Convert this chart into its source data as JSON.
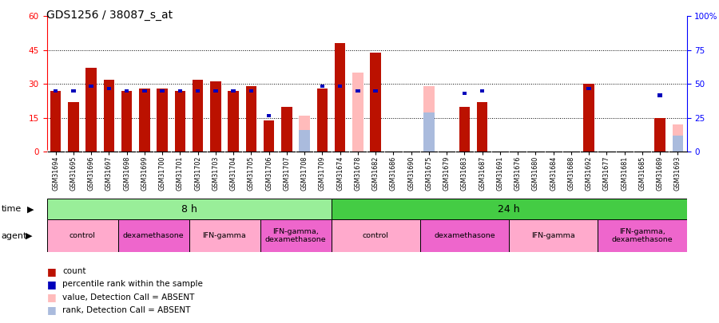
{
  "title": "GDS1256 / 38087_s_at",
  "samples": [
    "GSM31694",
    "GSM31695",
    "GSM31696",
    "GSM31697",
    "GSM31698",
    "GSM31699",
    "GSM31700",
    "GSM31701",
    "GSM31702",
    "GSM31703",
    "GSM31704",
    "GSM31705",
    "GSM31706",
    "GSM31707",
    "GSM31708",
    "GSM31709",
    "GSM31674",
    "GSM31678",
    "GSM31682",
    "GSM31686",
    "GSM31690",
    "GSM31675",
    "GSM31679",
    "GSM31683",
    "GSM31687",
    "GSM31691",
    "GSM31676",
    "GSM31680",
    "GSM31684",
    "GSM31688",
    "GSM31692",
    "GSM31677",
    "GSM31681",
    "GSM31685",
    "GSM31689",
    "GSM31693"
  ],
  "count_values": [
    27,
    22,
    37,
    32,
    27,
    28,
    28,
    27,
    32,
    31,
    27,
    29,
    14,
    20,
    null,
    28,
    48,
    null,
    44,
    null,
    null,
    null,
    null,
    20,
    22,
    null,
    null,
    null,
    null,
    null,
    30,
    null,
    null,
    null,
    15,
    null
  ],
  "percentile_values": [
    27,
    27,
    29,
    28,
    27,
    27,
    27,
    27,
    27,
    27,
    27,
    27,
    16,
    null,
    null,
    29,
    29,
    27,
    27,
    null,
    null,
    null,
    null,
    26,
    27,
    null,
    null,
    null,
    null,
    null,
    28,
    null,
    null,
    null,
    25,
    null
  ],
  "absent_value_values": [
    null,
    null,
    null,
    null,
    null,
    null,
    null,
    null,
    null,
    null,
    null,
    null,
    null,
    null,
    16,
    null,
    null,
    35,
    null,
    null,
    null,
    29,
    null,
    null,
    null,
    null,
    null,
    null,
    null,
    null,
    null,
    null,
    null,
    null,
    null,
    12
  ],
  "absent_rank_values": [
    null,
    null,
    null,
    null,
    null,
    null,
    null,
    null,
    null,
    null,
    null,
    null,
    null,
    null,
    16,
    null,
    null,
    null,
    null,
    null,
    null,
    29,
    null,
    null,
    null,
    null,
    null,
    null,
    null,
    null,
    null,
    null,
    null,
    null,
    null,
    12
  ],
  "ylim_left": [
    0,
    60
  ],
  "ylim_right": [
    0,
    100
  ],
  "yticks_left": [
    0,
    15,
    30,
    45,
    60
  ],
  "yticks_right": [
    0,
    25,
    50,
    75,
    100
  ],
  "ytick_right_labels": [
    "0",
    "25",
    "50",
    "75",
    "100%"
  ],
  "color_count": "#BB1100",
  "color_percentile": "#0000BB",
  "color_absent_value": "#FFBBBB",
  "color_absent_rank": "#AABBDD",
  "bar_width": 0.6,
  "time_row": [
    {
      "label": "8 h",
      "start": 0,
      "end": 16,
      "color": "#99EE99"
    },
    {
      "label": "24 h",
      "start": 16,
      "end": 36,
      "color": "#44CC44"
    }
  ],
  "agent_row": [
    {
      "label": "control",
      "start": 0,
      "end": 4,
      "color": "#FFAACC"
    },
    {
      "label": "dexamethasone",
      "start": 4,
      "end": 8,
      "color": "#EE66CC"
    },
    {
      "label": "IFN-gamma",
      "start": 8,
      "end": 12,
      "color": "#FFAACC"
    },
    {
      "label": "IFN-gamma,\ndexamethasone",
      "start": 12,
      "end": 16,
      "color": "#EE66CC"
    },
    {
      "label": "control",
      "start": 16,
      "end": 21,
      "color": "#FFAACC"
    },
    {
      "label": "dexamethasone",
      "start": 21,
      "end": 26,
      "color": "#EE66CC"
    },
    {
      "label": "IFN-gamma",
      "start": 26,
      "end": 31,
      "color": "#FFAACC"
    },
    {
      "label": "IFN-gamma,\ndexamethasone",
      "start": 31,
      "end": 36,
      "color": "#EE66CC"
    }
  ],
  "legend_items": [
    {
      "color": "#BB1100",
      "label": "count"
    },
    {
      "color": "#0000BB",
      "label": "percentile rank within the sample"
    },
    {
      "color": "#FFBBBB",
      "label": "value, Detection Call = ABSENT"
    },
    {
      "color": "#AABBDD",
      "label": "rank, Detection Call = ABSENT"
    }
  ]
}
